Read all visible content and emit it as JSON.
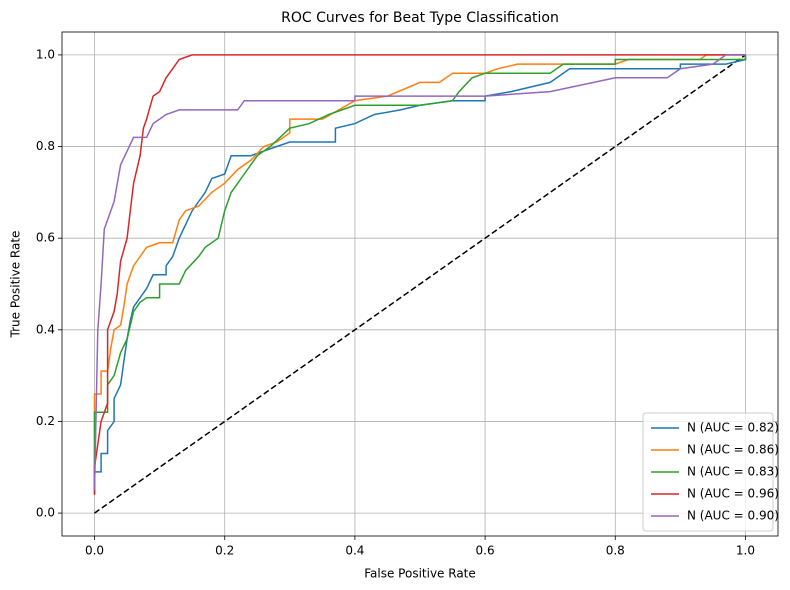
{
  "chart_data": {
    "type": "line",
    "title": "ROC Curves for Beat Type Classification",
    "xlabel": "False Positive Rate",
    "ylabel": "True Positive Rate",
    "xlim": [
      -0.05,
      1.05
    ],
    "ylim": [
      -0.05,
      1.05
    ],
    "xticks": [
      {
        "value": 0,
        "label": "0.0"
      },
      0.2,
      0.4,
      0.6,
      0.8,
      {
        "value": 1,
        "label": "1.0"
      }
    ],
    "yticks": [
      {
        "value": 0,
        "label": "0.0"
      },
      0.2,
      0.4,
      0.6,
      0.8,
      {
        "value": 1,
        "label": "1.0"
      }
    ],
    "grid": true,
    "legend": "lower right",
    "reference_line": {
      "x": [
        0,
        1
      ],
      "values": [
        0,
        1
      ],
      "color": "#000000",
      "dash": true
    },
    "series": [
      {
        "name": "N (AUC = 0.82)",
        "color": "#1f77b4",
        "x": [
          0,
          0,
          0.01,
          0.01,
          0.02,
          0.02,
          0.03,
          0.03,
          0.04,
          0.045,
          0.05,
          0.055,
          0.06,
          0.07,
          0.08,
          0.09,
          0.11,
          0.11,
          0.12,
          0.13,
          0.14,
          0.15,
          0.16,
          0.17,
          0.18,
          0.2,
          0.21,
          0.24,
          0.26,
          0.28,
          0.3,
          0.37,
          0.37,
          0.4,
          0.43,
          0.47,
          0.5,
          0.55,
          0.6,
          0.6,
          0.64,
          0.7,
          0.73,
          0.9,
          0.9,
          0.97,
          1,
          1
        ],
        "values": [
          0.05,
          0.09,
          0.09,
          0.13,
          0.13,
          0.18,
          0.2,
          0.25,
          0.28,
          0.33,
          0.38,
          0.42,
          0.45,
          0.47,
          0.49,
          0.52,
          0.52,
          0.54,
          0.56,
          0.6,
          0.63,
          0.66,
          0.68,
          0.7,
          0.73,
          0.74,
          0.78,
          0.78,
          0.79,
          0.8,
          0.81,
          0.81,
          0.84,
          0.85,
          0.87,
          0.88,
          0.89,
          0.9,
          0.9,
          0.91,
          0.92,
          0.94,
          0.97,
          0.97,
          0.98,
          0.98,
          0.99,
          1
        ]
      },
      {
        "name": "N (AUC = 0.86)",
        "color": "#ff7f0e",
        "x": [
          0,
          0,
          0.01,
          0.01,
          0.02,
          0.025,
          0.03,
          0.04,
          0.045,
          0.05,
          0.06,
          0.07,
          0.08,
          0.1,
          0.12,
          0.13,
          0.14,
          0.16,
          0.18,
          0.2,
          0.22,
          0.24,
          0.26,
          0.28,
          0.3,
          0.3,
          0.35,
          0.4,
          0.45,
          0.5,
          0.53,
          0.55,
          0.6,
          0.62,
          0.65,
          0.8,
          0.82,
          0.93,
          0.94,
          1
        ],
        "values": [
          0.1,
          0.26,
          0.26,
          0.31,
          0.31,
          0.36,
          0.4,
          0.41,
          0.45,
          0.5,
          0.54,
          0.56,
          0.58,
          0.59,
          0.59,
          0.64,
          0.66,
          0.67,
          0.7,
          0.72,
          0.75,
          0.77,
          0.8,
          0.81,
          0.83,
          0.86,
          0.86,
          0.9,
          0.91,
          0.94,
          0.94,
          0.96,
          0.96,
          0.97,
          0.98,
          0.98,
          0.99,
          0.99,
          1,
          1
        ]
      },
      {
        "name": "N (AUC = 0.83)",
        "color": "#2ca02c",
        "x": [
          0,
          0,
          0.02,
          0.02,
          0.03,
          0.04,
          0.05,
          0.06,
          0.07,
          0.08,
          0.1,
          0.1,
          0.13,
          0.14,
          0.16,
          0.17,
          0.19,
          0.2,
          0.21,
          0.23,
          0.25,
          0.27,
          0.3,
          0.33,
          0.36,
          0.4,
          0.5,
          0.55,
          0.56,
          0.58,
          0.6,
          0.7,
          0.72,
          0.8,
          0.8,
          1,
          1
        ],
        "values": [
          0.04,
          0.22,
          0.22,
          0.28,
          0.3,
          0.35,
          0.38,
          0.44,
          0.46,
          0.47,
          0.47,
          0.5,
          0.5,
          0.53,
          0.56,
          0.58,
          0.6,
          0.66,
          0.7,
          0.74,
          0.78,
          0.8,
          0.84,
          0.85,
          0.87,
          0.89,
          0.89,
          0.9,
          0.92,
          0.95,
          0.96,
          0.96,
          0.98,
          0.98,
          0.99,
          0.99,
          1
        ]
      },
      {
        "name": "N (AUC = 0.96)",
        "color": "#d62728",
        "x": [
          0,
          0,
          0.01,
          0.02,
          0.02,
          0.03,
          0.035,
          0.04,
          0.05,
          0.055,
          0.06,
          0.07,
          0.075,
          0.08,
          0.09,
          0.1,
          0.11,
          0.12,
          0.13,
          0.15,
          1
        ],
        "values": [
          0.04,
          0.1,
          0.2,
          0.24,
          0.4,
          0.44,
          0.48,
          0.55,
          0.6,
          0.66,
          0.72,
          0.78,
          0.84,
          0.86,
          0.91,
          0.92,
          0.95,
          0.97,
          0.99,
          1,
          1
        ]
      },
      {
        "name": "N (AUC = 0.90)",
        "color": "#9467bd",
        "x": [
          0,
          0.005,
          0.01,
          0.015,
          0.02,
          0.03,
          0.035,
          0.04,
          0.05,
          0.06,
          0.08,
          0.09,
          0.1,
          0.11,
          0.13,
          0.22,
          0.23,
          0.4,
          0.4,
          0.6,
          0.7,
          0.8,
          0.88,
          0.9,
          0.95,
          0.97,
          1
        ],
        "values": [
          0.05,
          0.4,
          0.5,
          0.62,
          0.64,
          0.68,
          0.72,
          0.76,
          0.79,
          0.82,
          0.82,
          0.85,
          0.86,
          0.87,
          0.88,
          0.88,
          0.9,
          0.9,
          0.91,
          0.91,
          0.92,
          0.95,
          0.95,
          0.97,
          0.98,
          1,
          1
        ]
      }
    ]
  }
}
